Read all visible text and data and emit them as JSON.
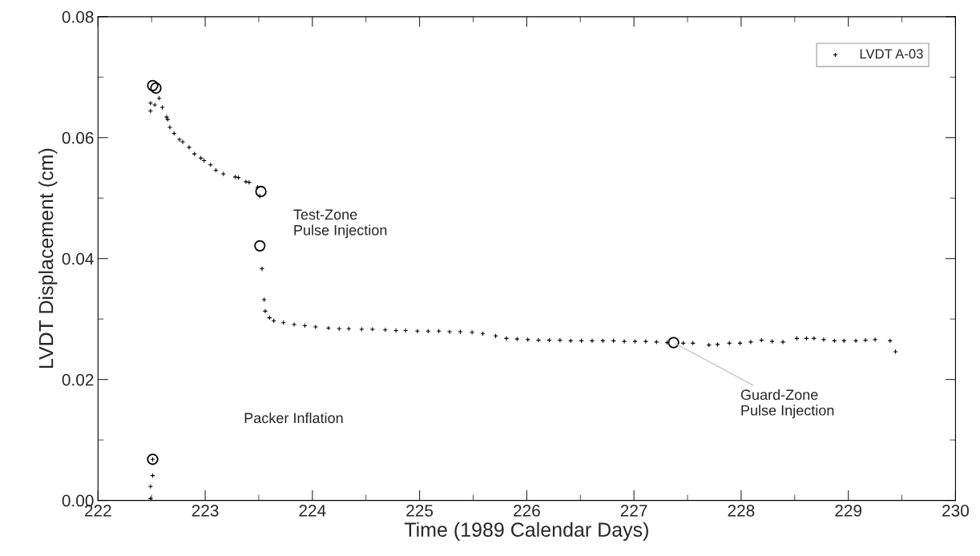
{
  "chart_data": {
    "type": "scatter",
    "xlabel": "Time (1989 Calendar Days)",
    "ylabel": "LVDT Displacement (cm)",
    "xlim": [
      222,
      230
    ],
    "xticks": [
      222,
      223,
      224,
      225,
      226,
      227,
      228,
      229,
      230
    ],
    "ylim": [
      0,
      0.08
    ],
    "yticks": [
      {
        "value": 0,
        "label": "0.00"
      },
      {
        "value": 0.02,
        "label": "0.02"
      },
      {
        "value": 0.04,
        "label": "0.04"
      },
      {
        "value": 0.06,
        "label": "0.06"
      },
      {
        "value": 0.08,
        "label": "0.08"
      }
    ],
    "grid": false,
    "legend": "top right",
    "annotations": [
      "Packer Inflation",
      {
        "text": "Test-Zone\nPulse Injection",
        "x": 223.51,
        "y": 0.0421
      },
      {
        "text": "Guard-Zone\nPulse Injection",
        "x": 227.37,
        "y": 0.0261
      }
    ],
    "series": [
      {
        "name": "LVDT A-03",
        "color": "#000000",
        "marker": "cross",
        "x": [
          222.49,
          222.49,
          222.51,
          222.51,
          222.49,
          222.49,
          222.53,
          222.57,
          222.6,
          222.64,
          222.65,
          222.67,
          222.71,
          222.76,
          222.79,
          222.85,
          222.9,
          222.96,
          222.99,
          223.05,
          223.1,
          223.17,
          223.28,
          223.31,
          223.38,
          223.41,
          223.49,
          223.51,
          223.53,
          223.55,
          223.56,
          223.6,
          223.64,
          223.73,
          223.83,
          223.93,
          224.03,
          224.15,
          224.25,
          224.34,
          224.46,
          224.56,
          224.68,
          224.78,
          224.87,
          224.98,
          225.08,
          225.18,
          225.28,
          225.38,
          225.49,
          225.59,
          225.71,
          225.81,
          225.91,
          226.01,
          226.11,
          226.21,
          226.31,
          226.41,
          226.51,
          226.61,
          226.71,
          226.81,
          226.91,
          227.01,
          227.11,
          227.21,
          227.31,
          227.46,
          227.55,
          227.7,
          227.78,
          227.89,
          227.99,
          228.09,
          228.19,
          228.29,
          228.39,
          228.52,
          228.61,
          228.68,
          228.77,
          228.87,
          228.96,
          229.07,
          229.16,
          229.25,
          229.39,
          229.44
        ],
        "values": [
          0.0003,
          0.0023,
          0.0041,
          0.0068,
          0.0644,
          0.0657,
          0.0654,
          0.0665,
          0.065,
          0.0634,
          0.063,
          0.0617,
          0.0607,
          0.0597,
          0.0593,
          0.0584,
          0.0573,
          0.0566,
          0.0562,
          0.0555,
          0.0546,
          0.054,
          0.0535,
          0.0534,
          0.0527,
          0.0526,
          0.0518,
          0.0503,
          0.0383,
          0.0332,
          0.0313,
          0.0302,
          0.0297,
          0.0294,
          0.0291,
          0.0289,
          0.0287,
          0.0285,
          0.0284,
          0.0284,
          0.0283,
          0.0283,
          0.0282,
          0.0281,
          0.0281,
          0.028,
          0.028,
          0.028,
          0.0279,
          0.0279,
          0.0278,
          0.0276,
          0.0272,
          0.0268,
          0.0267,
          0.0266,
          0.0265,
          0.0265,
          0.0265,
          0.0264,
          0.0264,
          0.0264,
          0.0264,
          0.0264,
          0.0263,
          0.0263,
          0.0263,
          0.0262,
          0.0261,
          0.026,
          0.026,
          0.0257,
          0.0258,
          0.026,
          0.026,
          0.0262,
          0.0265,
          0.0263,
          0.0262,
          0.0268,
          0.0268,
          0.0268,
          0.0266,
          0.0264,
          0.0264,
          0.0264,
          0.0265,
          0.0266,
          0.0264,
          0.0246
        ]
      },
      {
        "color": "#000000",
        "marker": "circle",
        "x": [
          222.51,
          222.54,
          223.52,
          223.51,
          227.37,
          222.51
        ],
        "values": [
          0.0686,
          0.0682,
          0.0511,
          0.0421,
          0.0261,
          0.0068
        ]
      }
    ]
  }
}
